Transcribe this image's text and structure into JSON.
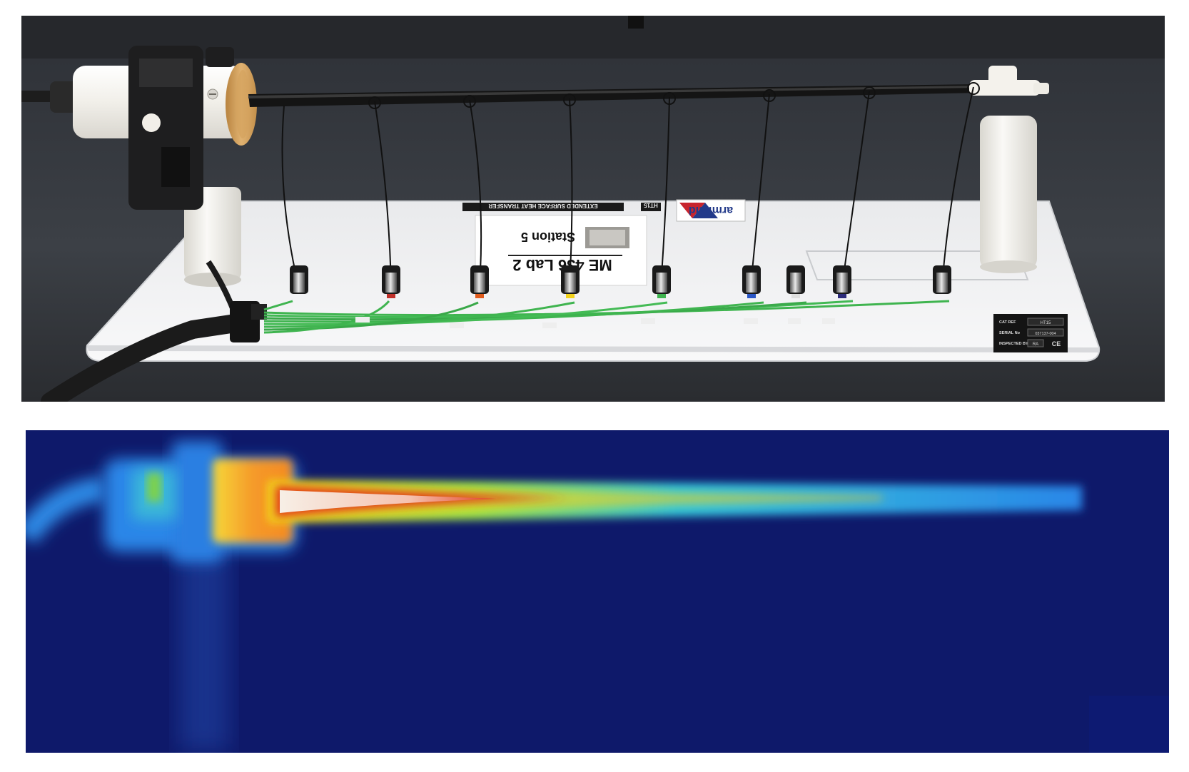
{
  "photo": {
    "lab_card": {
      "title": "ME 436 Lab 2",
      "station": "Station 5"
    },
    "equipment_label": "EXTENDED SURFACE HEAT TRANSFER",
    "model_tag": "HT15",
    "brand": "armfield",
    "plate": {
      "cat_ref_label": "CAT REF",
      "cat_ref_value": "HT15",
      "serial_label": "SERIAL No",
      "serial_value": "037137-004",
      "inspected_label": "INSPECTED BY",
      "inspected_value": "RA",
      "mark": "CE"
    },
    "thermocouple_count": 8,
    "colors": {
      "bench": "#3a3d42",
      "base_plate": "#f2f3f4",
      "rod": "#141414",
      "wire": "#3fb44f"
    }
  },
  "thermal": {
    "colors": {
      "background": "#0f1a6e",
      "cool": "#1f6fe0",
      "warm": "#f2d21b",
      "hot": "#e23b1e",
      "hottest": "#f7efe6"
    }
  }
}
